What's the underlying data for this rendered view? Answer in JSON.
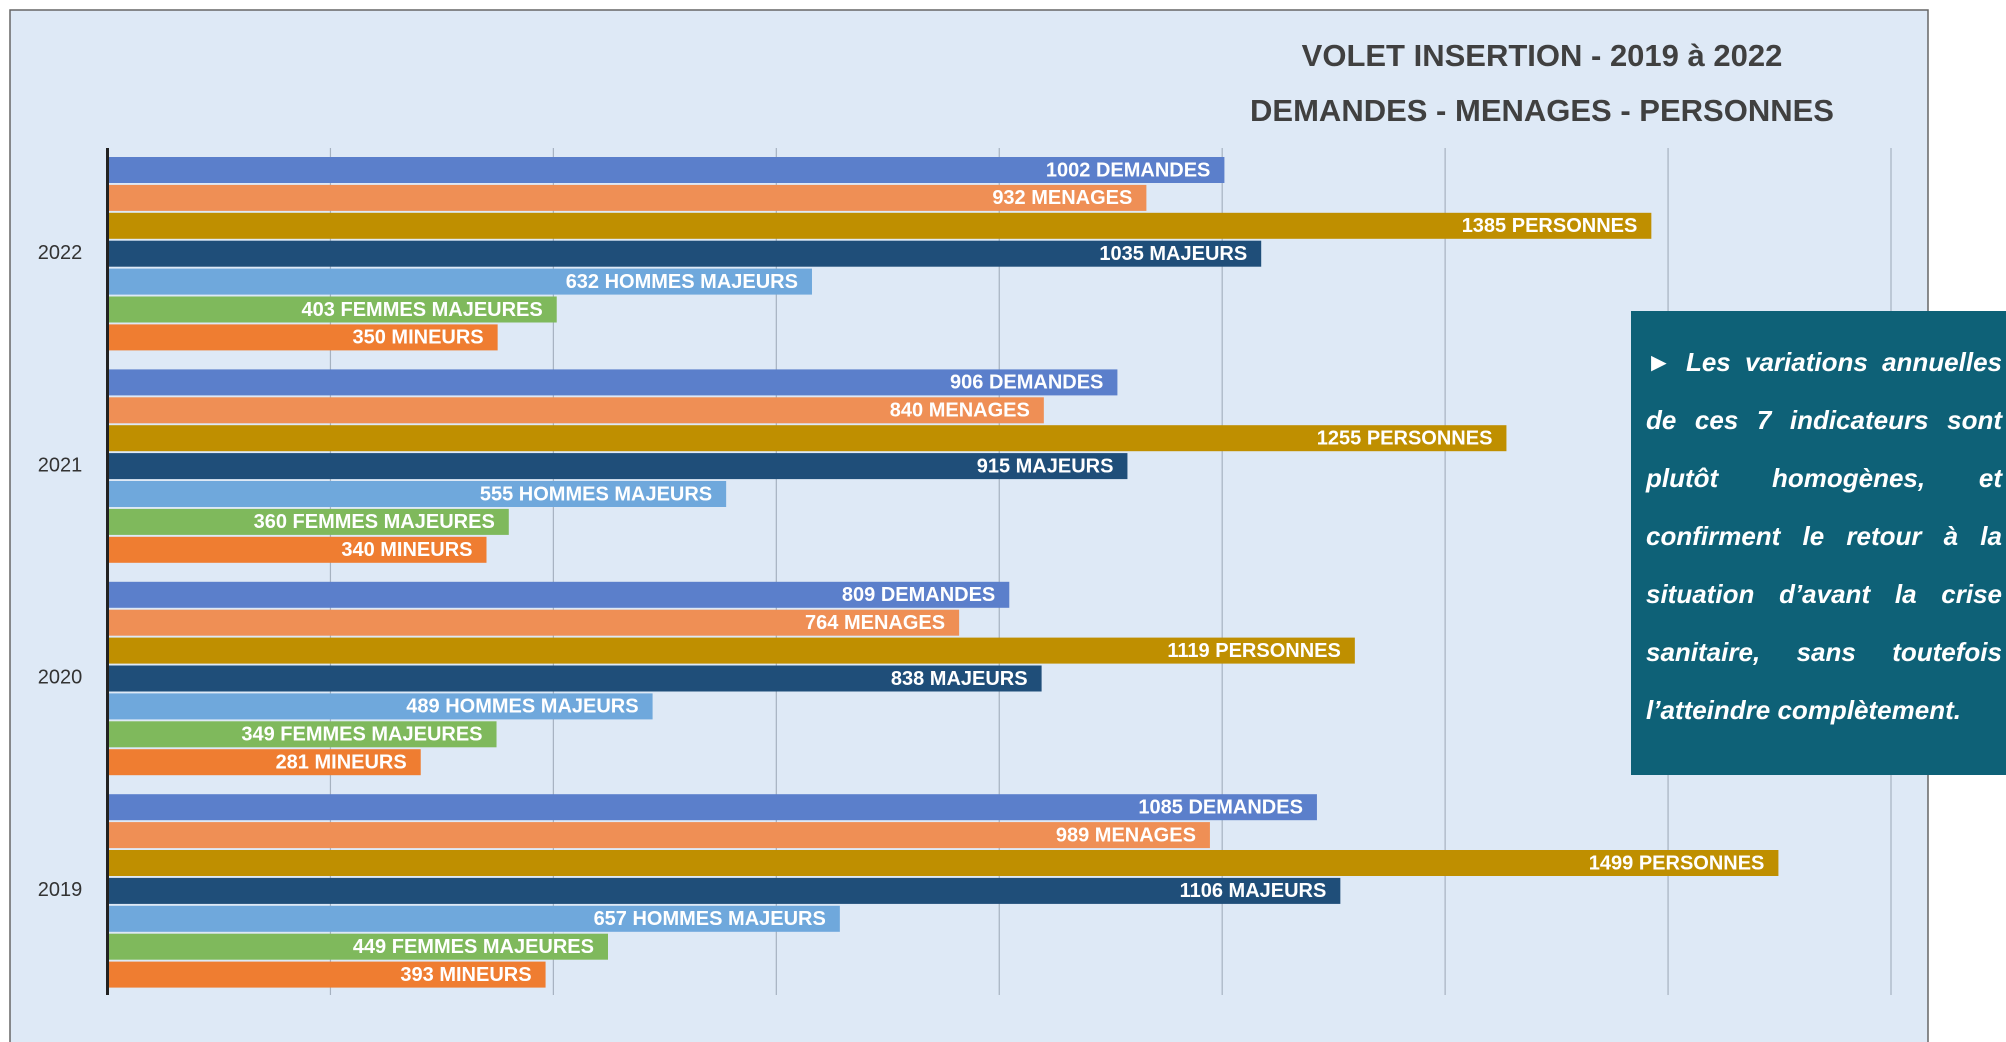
{
  "chart_data": {
    "type": "bar",
    "orientation": "horizontal",
    "title": "VOLET INSERTION - 2019 à 2022",
    "subtitle": "DEMANDES - MENAGES - PERSONNES",
    "categories": [
      "2022",
      "2021",
      "2020",
      "2019"
    ],
    "series": [
      {
        "color": "#5b7fcb",
        "values": [
          1002,
          906,
          809,
          1085
        ],
        "value_labels": [
          "1002 DEMANDES",
          "906 DEMANDES",
          "809 DEMANDES",
          "1085 DEMANDES"
        ]
      },
      {
        "color": "#ef8f55",
        "values": [
          932,
          840,
          764,
          989
        ],
        "value_labels": [
          "932 MENAGES",
          "840 MENAGES",
          "764 MENAGES",
          "989 MENAGES"
        ]
      },
      {
        "color": "#bf8f00",
        "values": [
          1385,
          1255,
          1119,
          1499
        ],
        "value_labels": [
          "1385 PERSONNES",
          "1255 PERSONNES",
          "1119 PERSONNES",
          "1499 PERSONNES"
        ]
      },
      {
        "color": "#1f4e79",
        "values": [
          1035,
          915,
          838,
          1106
        ],
        "value_labels": [
          "1035 MAJEURS",
          "915 MAJEURS",
          "838 MAJEURS",
          "1106 MAJEURS"
        ]
      },
      {
        "color": "#6fa8dc",
        "values": [
          632,
          555,
          489,
          657
        ],
        "value_labels": [
          "632 HOMMES MAJEURS",
          "555 HOMMES MAJEURS",
          "489 HOMMES MAJEURS",
          "657 HOMMES MAJEURS"
        ]
      },
      {
        "color": "#7fb95c",
        "values": [
          403,
          360,
          349,
          449
        ],
        "value_labels": [
          "403 FEMMES MAJEURES",
          "360 FEMMES MAJEURES",
          "349 FEMMES MAJEURES",
          "449 FEMMES MAJEURES"
        ]
      },
      {
        "color": "#ef7d31",
        "values": [
          350,
          340,
          281,
          393
        ],
        "value_labels": [
          "350 MINEURS",
          "340 MINEURS",
          "281 MINEURS",
          "393 MINEURS"
        ]
      }
    ],
    "xlim": [
      0,
      1600
    ],
    "xticks": [
      0,
      200,
      400,
      600,
      800,
      1000,
      1200,
      1400,
      1600
    ],
    "grid": true,
    "annotation": "► Les variations annuelles de ces 7 indicateurs sont plutôt homogènes, et confirment le retour à la situation d’avant la crise sanitaire, sans toutefois l’atteindre complètement."
  }
}
